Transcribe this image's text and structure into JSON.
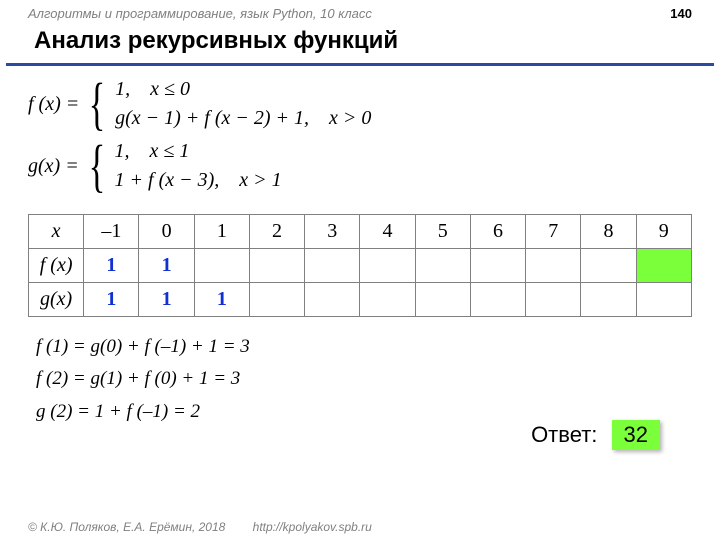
{
  "header": {
    "course": "Алгоритмы и программирование, язык Python, 10 класс",
    "page": "140"
  },
  "title": "Анализ рекурсивных функций",
  "formulae": {
    "f_left": "f (x) =",
    "f_case1": "1, x ≤ 0",
    "f_case2": "g(x − 1) + f (x − 2) + 1, x > 0",
    "g_left": "g(x) =",
    "g_case1": "1, x ≤ 1",
    "g_case2": "1 + f (x − 3), x > 1"
  },
  "table": {
    "cols": [
      "x",
      "–1",
      "0",
      "1",
      "2",
      "3",
      "4",
      "5",
      "6",
      "7",
      "8",
      "9"
    ],
    "rows": [
      {
        "label": "f (x)",
        "cells": [
          "1",
          "1",
          "",
          "",
          "",
          "",
          "",
          "",
          "",
          "",
          ""
        ],
        "blue": [
          0,
          1
        ],
        "hl": [
          10
        ]
      },
      {
        "label": "g(x)",
        "cells": [
          "1",
          "1",
          "1",
          "",
          "",
          "",
          "",
          "",
          "",
          "",
          ""
        ],
        "blue": [
          0,
          1,
          2
        ],
        "hl": []
      }
    ]
  },
  "work": {
    "l1": "f (1) = g(0) + f (–1) + 1 = 3",
    "l2": "f (2) = g(1) + f (0) + 1 = 3",
    "l3": "g (2) = 1 +  f (–1) = 2"
  },
  "answer": {
    "label": "Ответ:",
    "value": "32"
  },
  "footer": {
    "copyright": "© К.Ю. Поляков, Е.А. Ерёмин, 2018",
    "url": "http://kpolyakov.spb.ru"
  },
  "colors": {
    "rule": "#2b4ba0",
    "blue_text": "#1030d0",
    "highlight": "#7aff3a",
    "grey": "#808080"
  }
}
